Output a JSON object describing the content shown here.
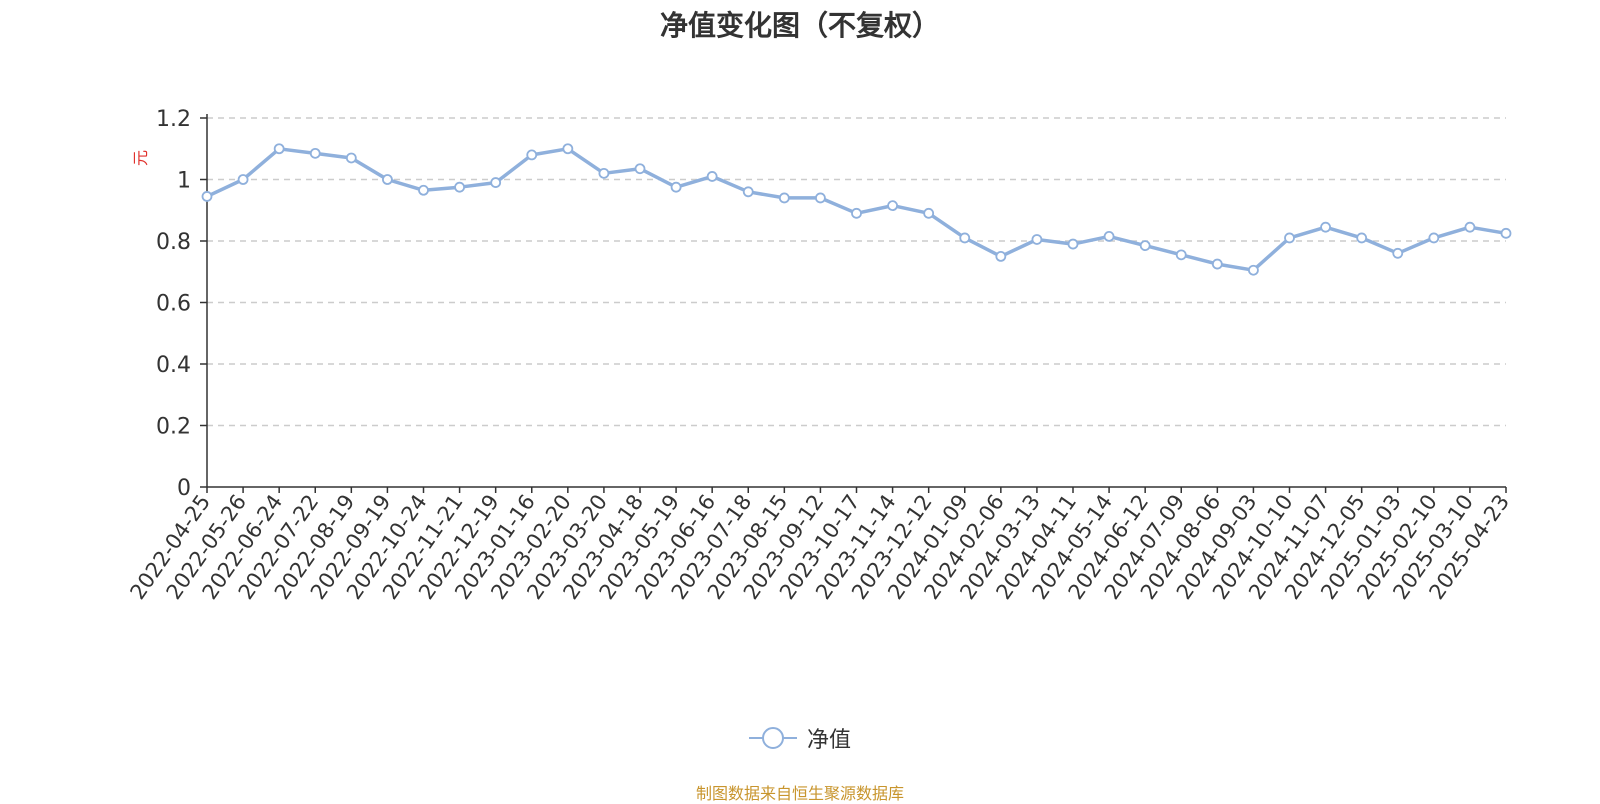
{
  "title": "净值变化图（不复权）",
  "source": "制图数据来自恒生聚源数据库",
  "legend": {
    "label": "净值"
  },
  "colors": {
    "line": "#8fb0dc",
    "unit": "#e0312c",
    "grid": "#cccccc",
    "axis": "#333333"
  },
  "chart_data": {
    "type": "line",
    "ylabel": "元",
    "ylim": [
      0,
      1.2
    ],
    "yticks": [
      "0",
      "0.2",
      "0.4",
      "0.6",
      "0.8",
      "1",
      "1.2"
    ],
    "grid": true,
    "legend_position": "bottom",
    "x": [
      "2022-04-25",
      "2022-05-26",
      "2022-06-24",
      "2022-07-22",
      "2022-08-19",
      "2022-09-19",
      "2022-10-24",
      "2022-11-21",
      "2022-12-19",
      "2023-01-16",
      "2023-02-20",
      "2023-03-20",
      "2023-04-18",
      "2023-05-19",
      "2023-06-16",
      "2023-07-18",
      "2023-08-15",
      "2023-09-12",
      "2023-10-17",
      "2023-11-14",
      "2023-12-12",
      "2024-01-09",
      "2024-02-06",
      "2024-03-13",
      "2024-04-11",
      "2024-05-14",
      "2024-06-12",
      "2024-07-09",
      "2024-08-06",
      "2024-09-03",
      "2024-10-10",
      "2024-11-07",
      "2024-12-05",
      "2025-01-03",
      "2025-02-10",
      "2025-03-10",
      "2025-04-23"
    ],
    "series": [
      {
        "name": "净值",
        "values": [
          0.945,
          1.0,
          1.1,
          1.085,
          1.07,
          1.0,
          0.965,
          0.975,
          0.99,
          1.08,
          1.1,
          1.02,
          1.035,
          0.975,
          1.01,
          0.96,
          0.94,
          0.94,
          0.89,
          0.915,
          0.89,
          0.81,
          0.75,
          0.805,
          0.79,
          0.815,
          0.785,
          0.755,
          0.725,
          0.705,
          0.81,
          0.845,
          0.81,
          0.76,
          0.81,
          0.845,
          0.825
        ]
      }
    ]
  }
}
